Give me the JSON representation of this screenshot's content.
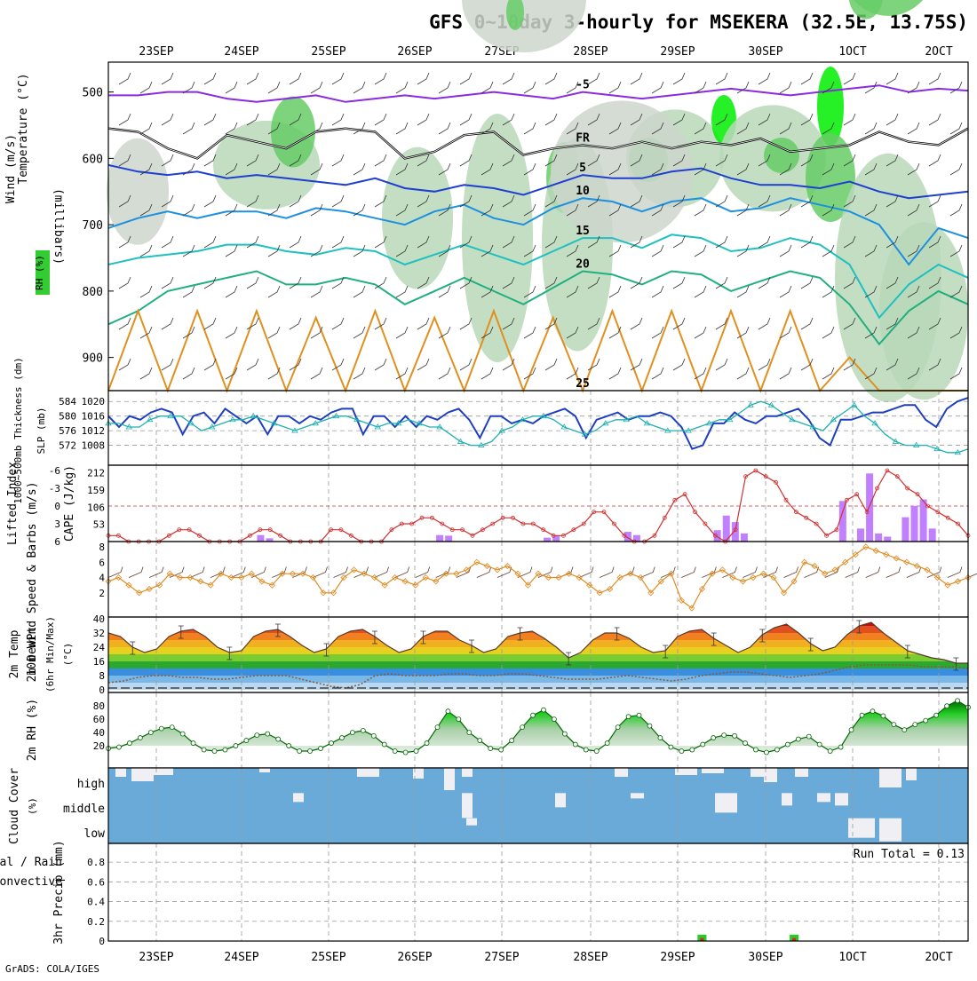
{
  "title": "GFS 0~10day 3-hourly for MSEKERA (32.5E, 13.75S)",
  "footer": "GrADS: COLA/IGES",
  "dates": [
    "23SEP",
    "24SEP",
    "25SEP",
    "26SEP",
    "27SEP",
    "28SEP",
    "29SEP",
    "30SEP",
    "1OCT",
    "2OCT"
  ],
  "chart_data": [
    {
      "id": "upper_air",
      "type": "contour",
      "ylabel": "(millibars)",
      "side_labels": [
        "Wind (m/s)",
        "Temperature (°C)",
        "RH (%)"
      ],
      "y_ticks": [
        500,
        600,
        700,
        800,
        900
      ],
      "ylim": [
        455,
        950
      ],
      "isotherms": [
        {
          "label": "-5",
          "color": "#8a2be2",
          "values": [
            505,
            505,
            500,
            500,
            510,
            515,
            510,
            505,
            515,
            510,
            505,
            510,
            505,
            500,
            505,
            510,
            500,
            505,
            510,
            505,
            500,
            495,
            500,
            505,
            500,
            495,
            490,
            500,
            495,
            498
          ]
        },
        {
          "label": "FR",
          "color": "#000000",
          "values": [
            555,
            560,
            585,
            600,
            565,
            575,
            585,
            560,
            555,
            560,
            600,
            590,
            565,
            560,
            595,
            585,
            580,
            585,
            575,
            585,
            575,
            580,
            570,
            590,
            585,
            580,
            560,
            575,
            580,
            555
          ]
        },
        {
          "label": "5",
          "color": "#1e3fd0",
          "values": [
            610,
            620,
            625,
            620,
            630,
            625,
            630,
            635,
            640,
            630,
            645,
            650,
            640,
            645,
            655,
            640,
            625,
            630,
            630,
            620,
            615,
            630,
            640,
            640,
            645,
            635,
            650,
            660,
            655,
            650
          ]
        },
        {
          "label": "10",
          "color": "#1e90e0",
          "values": [
            705,
            690,
            680,
            690,
            680,
            680,
            690,
            675,
            680,
            690,
            700,
            680,
            670,
            690,
            700,
            675,
            660,
            665,
            680,
            665,
            660,
            680,
            675,
            660,
            670,
            680,
            700,
            760,
            705,
            720
          ]
        },
        {
          "label": "15",
          "color": "#20c0c0",
          "values": [
            760,
            750,
            745,
            740,
            730,
            730,
            740,
            745,
            735,
            740,
            760,
            745,
            730,
            745,
            760,
            740,
            720,
            720,
            735,
            715,
            720,
            740,
            735,
            720,
            730,
            760,
            840,
            790,
            760,
            780
          ]
        },
        {
          "label": "20",
          "color": "#20b080",
          "values": [
            850,
            830,
            800,
            790,
            780,
            770,
            790,
            790,
            780,
            790,
            820,
            800,
            780,
            800,
            820,
            795,
            770,
            775,
            790,
            770,
            775,
            800,
            785,
            770,
            780,
            820,
            880,
            830,
            800,
            820
          ]
        },
        {
          "label": "25",
          "color": "#e09020",
          "values": [
            950,
            830,
            950,
            830,
            950,
            830,
            950,
            840,
            950,
            830,
            950,
            840,
            950,
            830,
            950,
            840,
            950,
            830,
            950,
            830,
            950,
            830,
            950,
            830,
            950,
            900,
            950,
            950,
            950,
            950
          ]
        }
      ],
      "rh_zones": [
        {
          "level": "50",
          "color": "#ccd6cc"
        },
        {
          "level": "70",
          "color": "#b8d8b8"
        },
        {
          "level": "90",
          "color": "#66cc66"
        },
        {
          "level": "95",
          "color": "#00ee00"
        }
      ]
    },
    {
      "id": "slp_thickness",
      "type": "line",
      "ylabel_left": "1000~500mb Thickness (dm)",
      "ylabel_right": "SLP (mb)",
      "y_ticks_left": [
        "584",
        "580",
        "576",
        "572"
      ],
      "y_ticks_right": [
        "1020",
        "1016",
        "1012",
        "1008"
      ],
      "ylim_slp": [
        1004,
        1022
      ],
      "series": [
        {
          "name": "SLP",
          "color": "#1e3fc0",
          "values": [
            1016,
            1013,
            1016,
            1015,
            1017,
            1018,
            1017,
            1011,
            1016,
            1017,
            1014,
            1018,
            1016,
            1014,
            1016,
            1011,
            1016,
            1016,
            1014,
            1016,
            1015,
            1017,
            1018,
            1018,
            1011,
            1016,
            1016,
            1013,
            1016,
            1013,
            1016,
            1015,
            1017,
            1018,
            1015,
            1010,
            1016,
            1016,
            1014,
            1015,
            1014,
            1016,
            1017,
            1018,
            1016,
            1010,
            1015,
            1016,
            1017,
            1015,
            1016,
            1016,
            1017,
            1016,
            1013,
            1007,
            1008,
            1014,
            1014,
            1017,
            1015,
            1014,
            1016,
            1016,
            1017,
            1018,
            1015,
            1010,
            1008,
            1015,
            1015,
            1016,
            1017,
            1017,
            1018,
            1019,
            1019,
            1015,
            1013,
            1018,
            1020,
            1021
          ]
        },
        {
          "name": "Thickness",
          "color": "#20b0b0",
          "values": [
            1014,
            1014,
            1013,
            1013,
            1015,
            1016,
            1016,
            1016,
            1014,
            1012,
            1013,
            1014,
            1015,
            1015,
            1016,
            1015,
            1014,
            1013,
            1012,
            1013,
            1014,
            1015,
            1016,
            1016,
            1015,
            1014,
            1013,
            1014,
            1014,
            1015,
            1014,
            1013,
            1013,
            1011,
            1009,
            1008,
            1008,
            1009,
            1012,
            1013,
            1015,
            1016,
            1016,
            1015,
            1013,
            1012,
            1011,
            1012,
            1014,
            1015,
            1015,
            1016,
            1014,
            1013,
            1012,
            1012,
            1012,
            1013,
            1014,
            1015,
            1015,
            1017,
            1019,
            1020,
            1019,
            1017,
            1015,
            1014,
            1013,
            1012,
            1015,
            1017,
            1019,
            1016,
            1014,
            1011,
            1009,
            1008,
            1008,
            1008,
            1007,
            1006,
            1006,
            1007
          ]
        }
      ]
    },
    {
      "id": "li_cape",
      "type": "line+bar",
      "ylabel_left": "Lifted Index",
      "ylabel_right": "CAPE (J/kg)",
      "y_ticks_left": [
        "-6",
        "-3",
        "0",
        "3",
        "6"
      ],
      "y_ticks_right": [
        "212",
        "159",
        "106",
        "53"
      ],
      "series": [
        {
          "name": "Lifted Index",
          "color": "#d03030",
          "values": [
            5,
            5,
            6,
            7,
            7,
            6,
            5,
            4,
            4,
            5,
            7,
            7,
            7,
            6,
            5,
            4,
            4,
            5,
            7,
            7,
            7,
            6,
            4,
            4,
            5,
            7,
            7,
            6,
            4,
            3,
            3,
            2,
            2,
            3,
            4,
            4,
            5,
            4,
            3,
            2,
            2,
            3,
            3,
            4,
            5,
            5,
            4,
            3,
            1,
            1,
            3,
            5,
            6,
            6,
            5,
            2,
            -1,
            -2,
            1,
            3,
            5,
            6,
            4,
            -5,
            -6,
            -5,
            -4,
            -1,
            1,
            2,
            3,
            5,
            4,
            -1,
            -2,
            1,
            -3,
            -6,
            -5,
            -3,
            -2,
            0,
            1,
            2,
            3,
            5
          ]
        },
        {
          "name": "CAPE",
          "color": "#c080ff",
          "values": [
            0,
            0,
            0,
            0,
            0,
            0,
            0,
            0,
            0,
            0,
            0,
            0,
            0,
            0,
            0,
            0,
            0,
            20,
            10,
            0,
            0,
            0,
            0,
            0,
            0,
            0,
            0,
            0,
            0,
            0,
            0,
            0,
            0,
            0,
            0,
            0,
            0,
            20,
            18,
            0,
            0,
            0,
            0,
            0,
            0,
            0,
            0,
            0,
            0,
            12,
            18,
            0,
            0,
            0,
            0,
            0,
            0,
            0,
            30,
            20,
            0,
            0,
            0,
            0,
            0,
            0,
            0,
            0,
            35,
            80,
            60,
            25,
            0,
            0,
            0,
            0,
            0,
            0,
            0,
            0,
            0,
            0,
            125,
            0,
            40,
            210,
            25,
            15,
            0,
            75,
            110,
            130,
            40,
            0,
            0,
            0,
            0
          ]
        }
      ]
    },
    {
      "id": "wind10m",
      "type": "line",
      "ylabel": "10m Wind Speed & Barbs (m/s)",
      "y_ticks": [
        "8",
        "6",
        "4",
        "2"
      ],
      "ylim": [
        0,
        8
      ],
      "series": [
        {
          "name": "Speed",
          "color": "#e08a20",
          "values": [
            3.5,
            4,
            3,
            2,
            2.5,
            3,
            4.5,
            4,
            4,
            3.5,
            3,
            4.5,
            4,
            4,
            4.5,
            3.5,
            3,
            4.5,
            4.5,
            4.5,
            4,
            2,
            2,
            4,
            5,
            4.5,
            4,
            3,
            4,
            3.5,
            3,
            4,
            3.5,
            4.5,
            4.5,
            5,
            6,
            5.5,
            5,
            5.5,
            4.5,
            3,
            4.5,
            4,
            4,
            4.5,
            4,
            3,
            2,
            2.5,
            4,
            4.5,
            4,
            2,
            3.5,
            4.5,
            1,
            0,
            2.5,
            4.5,
            5,
            4,
            3.5,
            4,
            4.5,
            4,
            2,
            3.5,
            6,
            5.5,
            4.5,
            5,
            6,
            7,
            8,
            7.5,
            7,
            6.5,
            6,
            5.5,
            5,
            4,
            3,
            3.5,
            4
          ]
        }
      ]
    },
    {
      "id": "temp2m",
      "type": "area",
      "ylabel": "2m Temp 2m DewPt (6hr Min/Max) (°C)",
      "y_ticks": [
        "40",
        "32",
        "24",
        "16",
        "8",
        "0"
      ],
      "ylim": [
        0,
        40
      ],
      "series": [
        {
          "name": "Temp",
          "values": [
            32,
            30,
            24,
            21,
            23,
            30,
            33,
            34,
            30,
            24,
            21,
            22,
            30,
            33,
            34,
            30,
            25,
            21,
            23,
            30,
            33,
            34,
            30,
            25,
            21,
            23,
            30,
            33,
            33,
            28,
            25,
            21,
            23,
            30,
            32,
            33,
            29,
            24,
            18,
            21,
            28,
            32,
            32,
            29,
            24,
            21,
            22,
            30,
            33,
            34,
            29,
            25,
            21,
            24,
            31,
            35,
            37,
            32,
            26,
            22,
            24,
            31,
            36,
            38,
            32,
            27,
            22,
            20,
            18,
            17,
            15,
            15
          ]
        },
        {
          "name": "DewPt",
          "values": [
            4,
            5,
            7,
            8,
            8,
            7,
            7,
            6,
            6,
            7,
            8,
            8,
            8,
            6,
            4,
            2,
            1,
            3,
            8,
            9,
            8,
            8,
            8,
            9,
            9,
            8,
            8,
            9,
            9,
            8,
            7,
            6,
            6,
            6,
            7,
            8,
            7,
            6,
            5,
            6,
            8,
            9,
            10,
            10,
            9,
            8,
            7,
            8,
            9,
            11,
            13,
            14,
            14,
            14,
            14,
            13,
            13,
            13,
            12
          ]
        }
      ]
    },
    {
      "id": "rh2m",
      "type": "area",
      "ylabel": "2m RH (%)",
      "y_ticks": [
        "80",
        "60",
        "40",
        "20"
      ],
      "ylim": [
        0,
        95
      ],
      "series": [
        {
          "name": "RH",
          "values": [
            16,
            18,
            24,
            32,
            40,
            46,
            48,
            38,
            24,
            14,
            12,
            14,
            20,
            28,
            36,
            38,
            30,
            20,
            12,
            12,
            16,
            24,
            32,
            40,
            43,
            35,
            22,
            12,
            10,
            12,
            24,
            48,
            72,
            60,
            40,
            28,
            16,
            14,
            28,
            48,
            66,
            74,
            60,
            38,
            22,
            14,
            12,
            24,
            48,
            64,
            66,
            50,
            32,
            18,
            12,
            14,
            22,
            32,
            36,
            35,
            24,
            14,
            10,
            14,
            22,
            30,
            34,
            22,
            12,
            18,
            44,
            66,
            72,
            65,
            52,
            44,
            52,
            58,
            66,
            80,
            88,
            78
          ]
        }
      ]
    },
    {
      "id": "cloud",
      "type": "heatmap",
      "ylabel": "Cloud Cover (%)",
      "row_labels": [
        "high",
        "middle",
        "low"
      ]
    },
    {
      "id": "precip",
      "type": "bar",
      "ylabel": "3hr Precip (mm)",
      "side_label_top": "Total / Rain",
      "side_label_bottom": "Convective",
      "y_ticks": [
        "0.8",
        "0.6",
        "0.4",
        "0.2",
        "0"
      ],
      "ylim": [
        0,
        0.9
      ],
      "run_total": "Run Total = 0.13",
      "bars": [
        {
          "time_index": 58,
          "total": 0.065,
          "convective": 0.03
        },
        {
          "time_index": 67,
          "total": 0.065,
          "convective": 0.03
        }
      ]
    }
  ]
}
